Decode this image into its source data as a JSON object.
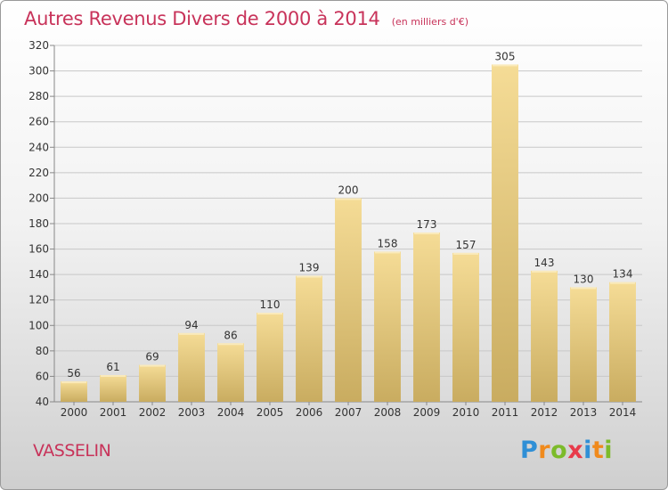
{
  "title": "Autres Revenus Divers de 2000 à 2014",
  "subtitle": "(en milliers d'€)",
  "commune": "VASSELIN",
  "logo": {
    "letters": [
      {
        "ch": "P",
        "color": "#2f8fd6"
      },
      {
        "ch": "r",
        "color": "#f08a1c"
      },
      {
        "ch": "o",
        "color": "#7cbb2a"
      },
      {
        "ch": "x",
        "color": "#e83a4a"
      },
      {
        "ch": "i",
        "color": "#2f8fd6"
      },
      {
        "ch": "t",
        "color": "#f08a1c"
      },
      {
        "ch": "i",
        "color": "#7cbb2a"
      }
    ]
  },
  "colors": {
    "title": "#c8335a",
    "bar_light": "#f5dc96",
    "bar_dark": "#c9ac60",
    "grid": "#c8c8c8",
    "text": "#333333"
  },
  "chart_data": {
    "type": "bar",
    "categories": [
      "2000",
      "2001",
      "2002",
      "2003",
      "2004",
      "2005",
      "2006",
      "2007",
      "2008",
      "2009",
      "2010",
      "2011",
      "2012",
      "2013",
      "2014"
    ],
    "values": [
      56,
      61,
      69,
      94,
      86,
      110,
      139,
      200,
      158,
      173,
      157,
      305,
      143,
      130,
      134
    ],
    "data_labels": [
      "56",
      "61",
      "69",
      "94",
      "86",
      "110",
      "139",
      "200",
      "158",
      "173",
      "157",
      "305",
      "143",
      "130",
      "134"
    ],
    "yticks": [
      "40",
      "60",
      "80",
      "100",
      "120",
      "140",
      "160",
      "180",
      "200",
      "220",
      "240",
      "260",
      "280",
      "300",
      "320"
    ],
    "ylim": [
      40,
      320
    ],
    "grid": true
  }
}
